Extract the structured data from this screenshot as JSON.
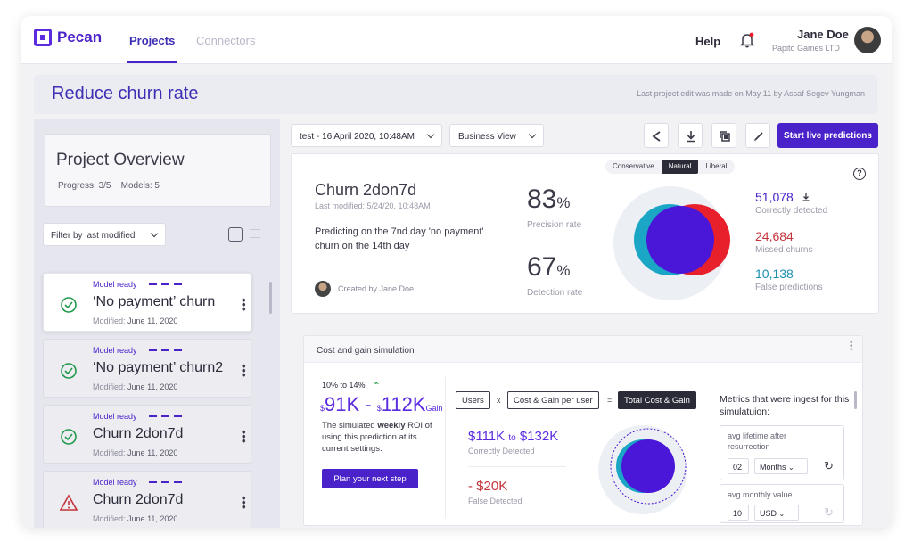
{
  "app": {
    "logo": "Pecan"
  },
  "nav": {
    "tabs": [
      {
        "label": "Projects"
      },
      {
        "label": "Connectors"
      }
    ],
    "help": "Help",
    "user": {
      "name": "Jane Doe",
      "org": "Papito Games LTD"
    }
  },
  "header": {
    "title": "Reduce churn rate",
    "last_edit": "Last project edit was made on May 11 by Assaf Segev Yungman"
  },
  "overview": {
    "title": "Project Overview",
    "progress_label": "Progress:",
    "progress_value": "3/5",
    "models_label": "Models:",
    "models_value": "5"
  },
  "filter": {
    "label": "Filter by last modified"
  },
  "models": [
    {
      "status": "Model ready",
      "title": "‘No payment’ churn",
      "mod_label": "Modified:",
      "mod_date": "June 11, 2020",
      "icon": "check-circle-icon"
    },
    {
      "status": "Model ready",
      "title": "‘No payment’ churn2",
      "mod_label": "Modified:",
      "mod_date": "June 11, 2020",
      "icon": "check-circle-icon"
    },
    {
      "status": "Model ready",
      "title": "Churn 2don7d",
      "mod_label": "Modified:",
      "mod_date": "June 11, 2020",
      "icon": "check-circle-icon"
    },
    {
      "status": "Model ready",
      "title": "Churn 2don7d",
      "mod_label": "Modified:",
      "mod_date": "June 11, 2020",
      "icon": "warning-triangle-icon"
    }
  ],
  "toolbar": {
    "run_select": "test - 16 April 2020, 10:48AM",
    "view_select": "Business View",
    "icons": [
      "share-icon",
      "download-icon",
      "copy-icon",
      "edit-icon"
    ],
    "start_button": "Start live predictions"
  },
  "model": {
    "title": "Churn 2don7d",
    "modified": "Last modified: 5/24/20, 10:48AM",
    "description": "Predicting on the 7nd day 'no payment' churn on the 14th day",
    "creator": "Created by Jane Doe",
    "precision_value": "83",
    "precision_unit": "%",
    "precision_label": "Precision rate",
    "detection_value": "67",
    "detection_unit": "%",
    "detection_label": "Detection rate",
    "segments": [
      "Conservative",
      "Natural",
      "Liberal"
    ],
    "selected_segment": "Natural",
    "correctly_detected_value": "51,078",
    "correctly_detected_label": "Correctly detected",
    "missed_value": "24,684",
    "missed_label": "Missed churns",
    "false_value": "10,138",
    "false_label": "False predictions"
  },
  "cost_gain": {
    "title": "Cost and gain simulation",
    "range": "10% to 14%",
    "roi_low_symbol": "$",
    "roi_low": "91K",
    "roi_sep": " - ",
    "roi_high_symbol": "$",
    "roi_high": "112K",
    "roi_suffix": "Gain",
    "roi_text_pre": "The simulated ",
    "roi_text_bold": "weekly",
    "roi_text_post": " ROI of using this prediction at its current settings.",
    "plan_button": "Plan your next step",
    "chip_users": "Users",
    "op_times": "x",
    "chip_cost": "Cost & Gain per user",
    "op_equals": "=",
    "chip_total": "Total Cost & Gain",
    "correct_low": "$111K",
    "correct_to": "to",
    "correct_high": "$132K",
    "correct_label": "Correctly Detected",
    "false_value": "- $20K",
    "false_label": "False Detected",
    "metrics_title": "Metrics that were ingest for this simulatuion:",
    "metric1_label": "avg lifetime after resurrection",
    "metric1_value": "02",
    "metric1_unit": "Months",
    "metric2_label": "avg monthly value",
    "metric2_value": "10",
    "metric2_unit": "USD"
  },
  "colors": {
    "accent": "#4a22c9",
    "missed": "#c4323a",
    "venn_red": "#e8202c",
    "venn_teal": "#1aa6c4"
  }
}
